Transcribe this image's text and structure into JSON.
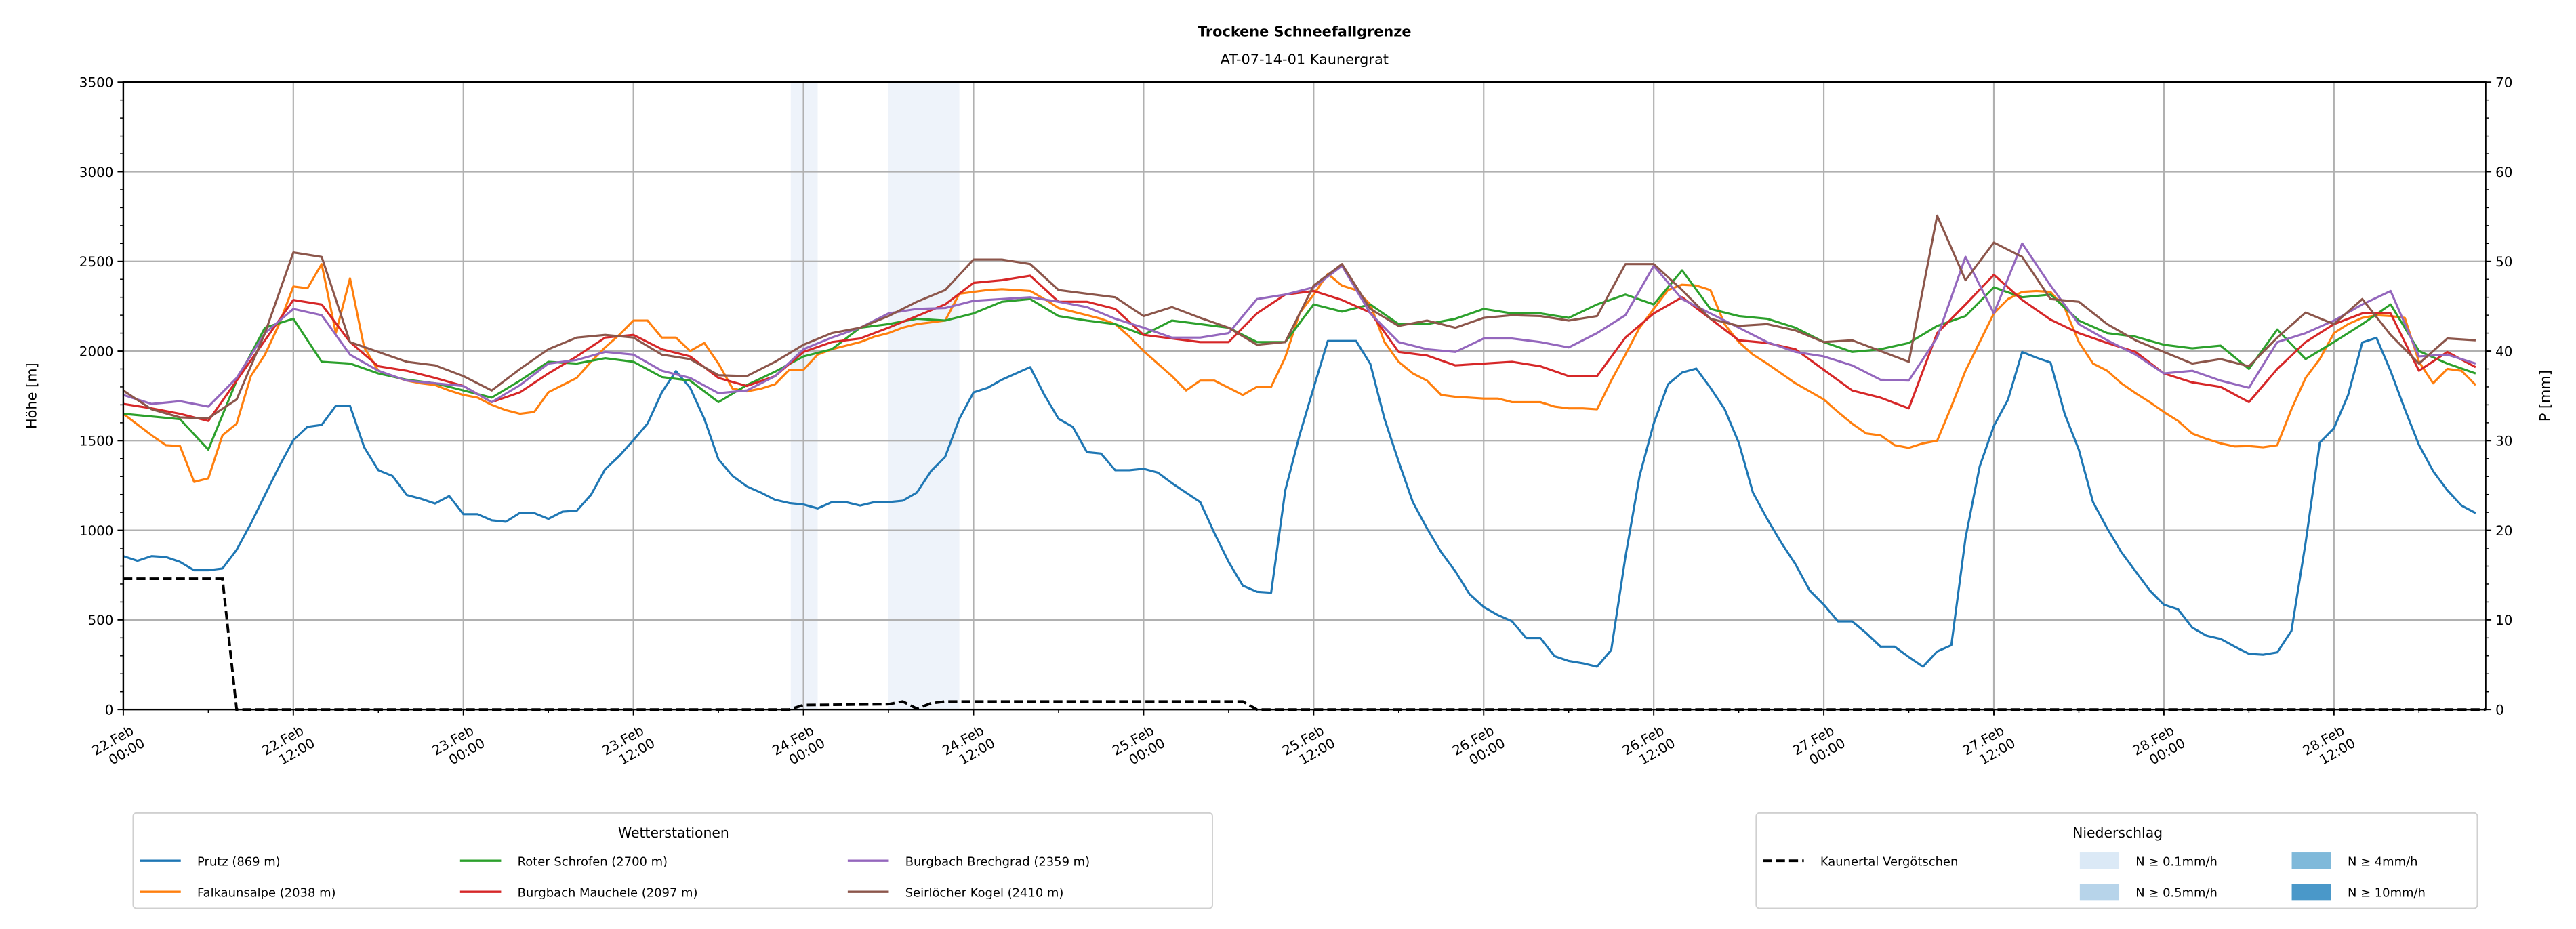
{
  "chart_data": {
    "type": "line",
    "title": "Trockene Schneefallgrenze",
    "subtitle": "AT-07-14-01 Kaunergrat",
    "ylabel": "Höhe [m]",
    "y2label": "P [mm]",
    "ylim": [
      0,
      3500
    ],
    "y2lim": [
      0,
      70
    ],
    "yticks": [
      0,
      500,
      1000,
      1500,
      2000,
      2500,
      3000,
      3500
    ],
    "y2ticks": [
      0,
      10,
      20,
      30,
      40,
      50,
      60,
      70
    ],
    "grid": true,
    "x_unit": "hours since 22.Feb 00:00",
    "xlim": [
      0,
      166.7
    ],
    "xticks": [
      {
        "hours": 0,
        "date": "22.Feb",
        "time": "00:00"
      },
      {
        "hours": 12,
        "date": "22.Feb",
        "time": "12:00"
      },
      {
        "hours": 24,
        "date": "23.Feb",
        "time": "00:00"
      },
      {
        "hours": 36,
        "date": "23.Feb",
        "time": "12:00"
      },
      {
        "hours": 48,
        "date": "24.Feb",
        "time": "00:00"
      },
      {
        "hours": 60,
        "date": "24.Feb",
        "time": "12:00"
      },
      {
        "hours": 72,
        "date": "25.Feb",
        "time": "00:00"
      },
      {
        "hours": 84,
        "date": "25.Feb",
        "time": "12:00"
      },
      {
        "hours": 96,
        "date": "26.Feb",
        "time": "00:00"
      },
      {
        "hours": 108,
        "date": "26.Feb",
        "time": "12:00"
      },
      {
        "hours": 120,
        "date": "27.Feb",
        "time": "00:00"
      },
      {
        "hours": 132,
        "date": "27.Feb",
        "time": "12:00"
      },
      {
        "hours": 144,
        "date": "28.Feb",
        "time": "00:00"
      },
      {
        "hours": 156,
        "date": "28.Feb",
        "time": "12:00"
      }
    ],
    "series": [
      {
        "name": "Prutz (869 m)",
        "color": "#1f77b4",
        "step_hours": 1,
        "values": [
          856,
          830,
          856,
          851,
          824,
          777,
          777,
          787,
          891,
          1037,
          1197,
          1356,
          1503,
          1577,
          1588,
          1694,
          1694,
          1463,
          1335,
          1303,
          1197,
          1176,
          1149,
          1191,
          1090,
          1090,
          1056,
          1048,
          1098,
          1096,
          1064,
          1104,
          1109,
          1197,
          1340,
          1415,
          1503,
          1596,
          1769,
          1888,
          1795,
          1622,
          1396,
          1303,
          1245,
          1210,
          1170,
          1152,
          1144,
          1122,
          1157,
          1157,
          1138,
          1157,
          1157,
          1165,
          1210,
          1330,
          1410,
          1622,
          1769,
          1795,
          1840,
          1875,
          1910,
          1755,
          1622,
          1577,
          1436,
          1428,
          1335,
          1335,
          1343,
          1322,
          1263,
          1210,
          1157,
          984,
          824,
          691,
          657,
          652,
          1223,
          1529,
          1795,
          2056,
          2056,
          2056,
          1928,
          1622,
          1383,
          1157,
          1011,
          878,
          771,
          644,
          572,
          527,
          492,
          399,
          399,
          298,
          271,
          258,
          239,
          332,
          851,
          1303,
          1596,
          1814,
          1880,
          1902,
          1795,
          1676,
          1489,
          1210,
          1064,
          931,
          811,
          665,
          585,
          492,
          492,
          426,
          351,
          351,
          293,
          239,
          324,
          359,
          957,
          1356,
          1582,
          1729,
          1995,
          1963,
          1936,
          1649,
          1449,
          1157,
          1011,
          878,
          771,
          665,
          585,
          559,
          457,
          412,
          394,
          351,
          311,
          306,
          319,
          439,
          931,
          1489,
          1569,
          1755,
          2048,
          2074,
          1888,
          1676,
          1476,
          1330,
          1223,
          1138,
          1096,
          1122
        ]
      },
      {
        "name": "Falkaunsalpe (2038 m)",
        "color": "#ff7f0e",
        "step_hours": 1,
        "values": [
          1650,
          1590,
          1530,
          1475,
          1470,
          1270,
          1290,
          1530,
          1595,
          1860,
          1980,
          2150,
          2360,
          2350,
          2485,
          2100,
          2405,
          2020,
          1890,
          1860,
          1835,
          1820,
          1810,
          1780,
          1755,
          1740,
          1700,
          1670,
          1650,
          1660,
          1770,
          1810,
          1850,
          1940,
          2020,
          2090,
          2170,
          2170,
          2075,
          2075,
          2000,
          2045,
          1930,
          1790,
          1775,
          1790,
          1815,
          1895,
          1895,
          1980,
          2010,
          2030,
          2050,
          2080,
          2100,
          2130,
          2150,
          2160,
          2170,
          2320,
          2330,
          2340,
          2345,
          2340,
          2335,
          2290,
          2240,
          2220,
          2200,
          2180,
          2150,
          2080,
          2000,
          1930,
          1860,
          1780,
          1835,
          1835,
          1795,
          1755,
          1800,
          1800,
          1965,
          2210,
          2315,
          2430,
          2365,
          2340,
          2260,
          2050,
          1940,
          1875,
          1835,
          1755,
          1745,
          1740,
          1735,
          1735,
          1715,
          1715,
          1715,
          1690,
          1680,
          1680,
          1675,
          1835,
          1980,
          2130,
          2235,
          2340,
          2370,
          2365,
          2340,
          2150,
          2050,
          1980,
          1930,
          1875,
          1820,
          1775,
          1730,
          1660,
          1595,
          1540,
          1530,
          1475,
          1460,
          1485,
          1500,
          1690,
          1890,
          2050,
          2210,
          2290,
          2330,
          2335,
          2330,
          2240,
          2050,
          1930,
          1890,
          1820,
          1765,
          1715,
          1660,
          1610,
          1540,
          1510,
          1485,
          1468,
          1470,
          1463,
          1475,
          1675,
          1850,
          1955,
          2100,
          2150,
          2185,
          2200,
          2195,
          2185,
          1940,
          1820,
          1900,
          1890,
          1810,
          1780
        ]
      },
      {
        "name": "Roter Schrofen (2700 m)",
        "color": "#2ca02c",
        "step_hours": 2,
        "values": [
          1650,
          1635,
          1620,
          1450,
          1835,
          2130,
          2180,
          1940,
          1930,
          1875,
          1840,
          1820,
          1780,
          1740,
          1835,
          1940,
          1930,
          1960,
          1940,
          1855,
          1835,
          1715,
          1810,
          1885,
          1970,
          2010,
          2130,
          2150,
          2180,
          2170,
          2210,
          2275,
          2290,
          2195,
          2170,
          2150,
          2090,
          2170,
          2150,
          2130,
          2050,
          2050,
          2260,
          2220,
          2260,
          2150,
          2150,
          2180,
          2235,
          2210,
          2210,
          2185,
          2260,
          2315,
          2260,
          2450,
          2235,
          2195,
          2180,
          2130,
          2050,
          1995,
          2010,
          2045,
          2140,
          2195,
          2355,
          2300,
          2315,
          2170,
          2100,
          2080,
          2035,
          2015,
          2030,
          1900,
          2120,
          1955,
          2050,
          2150,
          2260,
          2000,
          1930,
          1875
        ]
      },
      {
        "name": "Burgbach Mauchele (2097 m)",
        "color": "#d62728",
        "step_hours": 2,
        "values": [
          1705,
          1680,
          1650,
          1610,
          1835,
          2060,
          2285,
          2260,
          2050,
          1915,
          1890,
          1850,
          1805,
          1715,
          1770,
          1875,
          1970,
          2075,
          2090,
          2010,
          1970,
          1850,
          1805,
          1860,
          1995,
          2050,
          2070,
          2130,
          2195,
          2260,
          2380,
          2395,
          2420,
          2275,
          2275,
          2235,
          2090,
          2070,
          2050,
          2050,
          2210,
          2315,
          2335,
          2285,
          2215,
          1995,
          1975,
          1920,
          1930,
          1940,
          1915,
          1860,
          1860,
          2075,
          2210,
          2300,
          2180,
          2060,
          2045,
          2010,
          1895,
          1780,
          1740,
          1680,
          2100,
          2260,
          2425,
          2285,
          2175,
          2100,
          2045,
          1995,
          1875,
          1825,
          1800,
          1715,
          1900,
          2050,
          2150,
          2210,
          2210,
          1890,
          1995,
          1910
        ]
      },
      {
        "name": "Burgbach Brechgrad (2359 m)",
        "color": "#9467bd",
        "step_hours": 2,
        "values": [
          1755,
          1705,
          1720,
          1690,
          1850,
          2100,
          2235,
          2200,
          1980,
          1890,
          1835,
          1820,
          1805,
          1715,
          1810,
          1930,
          1950,
          1995,
          1980,
          1890,
          1850,
          1765,
          1780,
          1860,
          2010,
          2075,
          2130,
          2210,
          2235,
          2240,
          2280,
          2290,
          2300,
          2275,
          2245,
          2180,
          2130,
          2075,
          2075,
          2100,
          2290,
          2315,
          2355,
          2475,
          2210,
          2050,
          2010,
          1995,
          2070,
          2070,
          2050,
          2020,
          2100,
          2200,
          2475,
          2290,
          2210,
          2130,
          2050,
          1995,
          1970,
          1920,
          1840,
          1835,
          2075,
          2525,
          2210,
          2600,
          2365,
          2150,
          2060,
          1980,
          1875,
          1890,
          1835,
          1795,
          2050,
          2100,
          2170,
          2260,
          2335,
          1970,
          1980,
          1930
        ]
      },
      {
        "name": "Seirlöcher Kogel (2410 m)",
        "color": "#8c564b",
        "step_hours": 2,
        "values": [
          1780,
          1675,
          1630,
          1625,
          1730,
          2100,
          2550,
          2525,
          2050,
          1995,
          1940,
          1920,
          1860,
          1780,
          1900,
          2010,
          2075,
          2090,
          2075,
          1980,
          1955,
          1865,
          1860,
          1940,
          2035,
          2100,
          2130,
          2195,
          2275,
          2340,
          2510,
          2510,
          2485,
          2340,
          2320,
          2300,
          2195,
          2245,
          2185,
          2130,
          2035,
          2050,
          2365,
          2485,
          2235,
          2140,
          2170,
          2130,
          2185,
          2200,
          2195,
          2170,
          2195,
          2485,
          2485,
          2340,
          2180,
          2140,
          2150,
          2115,
          2050,
          2060,
          2000,
          1940,
          2755,
          2395,
          2605,
          2525,
          2290,
          2275,
          2150,
          2060,
          1995,
          1930,
          1955,
          1915,
          2075,
          2215,
          2150,
          2290,
          2090,
          1930,
          2070,
          2060
        ]
      }
    ],
    "precip_series": {
      "name": "Kaunertal Vergötschen",
      "axis": "right",
      "color": "#000000",
      "x_hours": [
        0,
        7,
        8,
        47,
        48,
        54,
        55,
        56,
        57,
        58,
        79,
        80,
        166.7
      ],
      "values_mm": [
        14.6,
        14.6,
        0,
        0,
        0.5,
        0.6,
        0.9,
        0.1,
        0.7,
        0.9,
        0.9,
        0,
        0
      ]
    },
    "precip_bands": [
      {
        "start_hours": 47.1,
        "end_hours": 49.0,
        "class": 0
      },
      {
        "start_hours": 54.0,
        "end_hours": 59.0,
        "class": 0
      }
    ],
    "legends": {
      "stations_title": "Wetterstationen",
      "stations_placement": "bottom-left",
      "precip_title": "Niederschlag",
      "precip_placement": "bottom-right",
      "precip_classes": [
        {
          "label": "N ≥ 0.1mm/h",
          "color": "#dbe9f6"
        },
        {
          "label": "N ≥ 0.5mm/h",
          "color": "#b7d4ea"
        },
        {
          "label": "N ≥ 4mm/h",
          "color": "#7fb9da"
        },
        {
          "label": "N ≥ 10mm/h",
          "color": "#4a98c9"
        }
      ]
    }
  }
}
